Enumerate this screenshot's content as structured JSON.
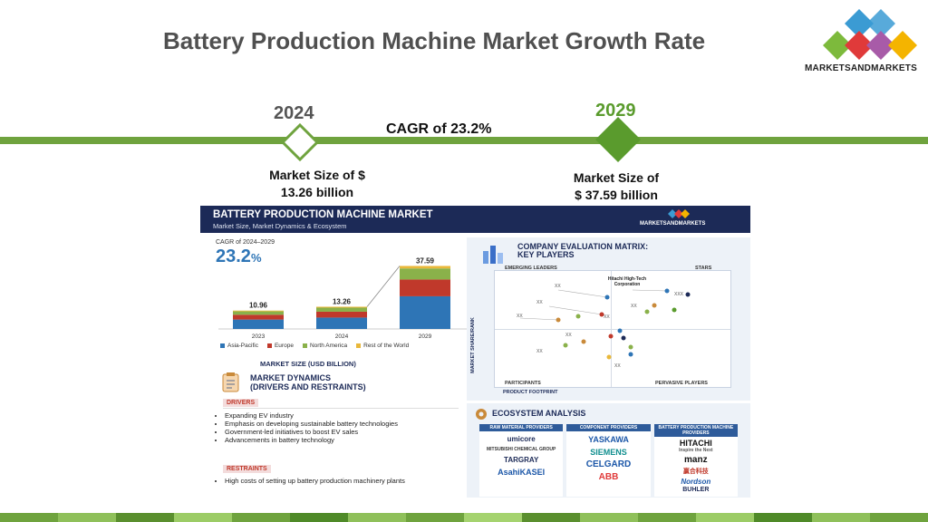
{
  "page": {
    "title": "Battery Production Machine Market Growth Rate",
    "logo_text": "MARKETSANDMARKETS",
    "start_year": "2024",
    "end_year": "2029",
    "cagr_text": "CAGR of 23.2%",
    "start_size_line1": "Market Size of $",
    "start_size_line2": "13.26 billion",
    "end_size_line1": "Market Size of",
    "end_size_line2": "$ 37.59 billion",
    "colors": {
      "green": "#6fa33e",
      "navy": "#1c2a57"
    }
  },
  "infographic": {
    "header_title": "BATTERY PRODUCTION MACHINE MARKET",
    "header_subtitle": "Market Size, Market Dynamics & Ecosystem",
    "header_logo": "MARKETSANDMARKETS",
    "cagr_label": "CAGR of 2024–2029",
    "cagr_value": "23.2",
    "cagr_unit": "%",
    "chart_caption": "MARKET SIZE (USD BILLION)",
    "dynamics_title_line1": "MARKET DYNAMICS",
    "dynamics_title_line2": "(DRIVERS AND RESTRAINTS)",
    "drivers_label": "DRIVERS",
    "drivers": [
      "Expanding EV industry",
      "Emphasis on developing sustainable battery technologies",
      "Government-led initiatives to boost EV sales",
      "Advancements in battery technology"
    ],
    "restraints_label": "RESTRAINTS",
    "restraints": [
      "High costs of setting up battery production machinery plants"
    ],
    "matrix_title_line1": "COMPANY EVALUATION MATRIX:",
    "matrix_title_line2": "KEY PLAYERS",
    "matrix_emerging": "EMERGING LEADERS",
    "matrix_stars": "STARS",
    "matrix_participants": "PARTICIPANTS",
    "matrix_pervasive": "PERVASIVE PLAYERS",
    "matrix_xaxis": "PRODUCT FOOTPRINT",
    "matrix_yaxis": "MARKET SHARE/RANK",
    "matrix_highlight": "Hitachi High-Tech Corporation",
    "ecosystem_title": "ECOSYSTEM ANALYSIS",
    "eco_columns": [
      {
        "header": "RAW MATERIAL PROVIDERS",
        "brands": [
          "umicore",
          "MITSUBISHI CHEMICAL GROUP",
          "TARGRAY",
          "AsahiKASEI"
        ]
      },
      {
        "header": "COMPONENT PROVIDERS",
        "brands": [
          "YASKAWA",
          "SIEMENS",
          "CELGARD",
          "ABB"
        ]
      },
      {
        "header": "BATTERY PRODUCTION MACHINE PROVIDERS",
        "brands": [
          "HITACHI",
          "manz",
          "赢合科技",
          "Nordson",
          "BUHLER"
        ]
      }
    ],
    "hitachi_tagline": "Inspire the Next"
  },
  "chart_data": {
    "type": "bar",
    "stacked": true,
    "categories": [
      "2023",
      "2024",
      "2029"
    ],
    "totals": [
      10.96,
      13.26,
      37.59
    ],
    "total_labels": [
      "10.96",
      "13.26",
      "37.59"
    ],
    "series": [
      {
        "name": "Asia-Pacific",
        "color": "#2e75b6",
        "values": [
          5.6,
          6.8,
          19.5
        ]
      },
      {
        "name": "Europe",
        "color": "#c0392b",
        "values": [
          2.9,
          3.5,
          10.0
        ]
      },
      {
        "name": "North America",
        "color": "#8ab14a",
        "values": [
          2.0,
          2.4,
          6.6
        ]
      },
      {
        "name": "Rest of the World",
        "color": "#e9b83a",
        "values": [
          0.46,
          0.56,
          1.49
        ]
      }
    ],
    "ylim": [
      0,
      40
    ],
    "legend_position": "bottom"
  }
}
